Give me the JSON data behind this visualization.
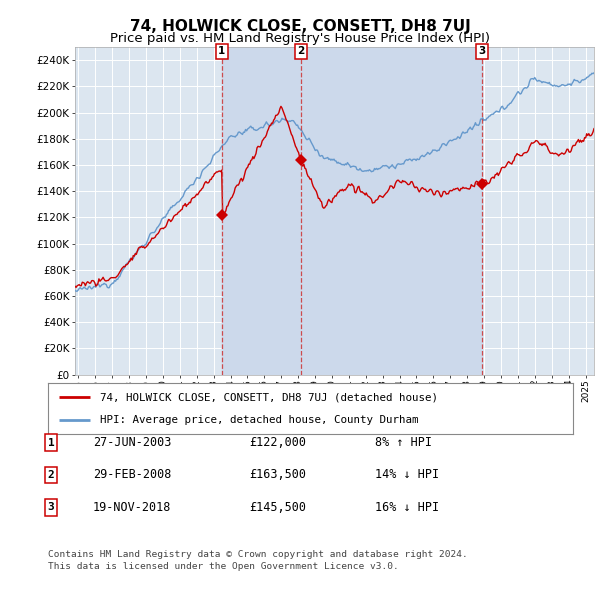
{
  "title": "74, HOLWICK CLOSE, CONSETT, DH8 7UJ",
  "subtitle": "Price paid vs. HM Land Registry's House Price Index (HPI)",
  "ylim": [
    0,
    250000
  ],
  "yticks": [
    0,
    20000,
    40000,
    60000,
    80000,
    100000,
    120000,
    140000,
    160000,
    180000,
    200000,
    220000,
    240000
  ],
  "ytick_labels": [
    "£0",
    "£20K",
    "£40K",
    "£60K",
    "£80K",
    "£100K",
    "£120K",
    "£140K",
    "£160K",
    "£180K",
    "£200K",
    "£220K",
    "£240K"
  ],
  "background_color": "#ffffff",
  "plot_bg_color": "#dce6f0",
  "grid_color": "#ffffff",
  "title_fontsize": 11,
  "subtitle_fontsize": 9.5,
  "transactions": [
    {
      "num": 1,
      "date": "27-JUN-2003",
      "price": 122000,
      "year": 2003.49,
      "pct": "8%",
      "dir": "↑"
    },
    {
      "num": 2,
      "date": "29-FEB-2008",
      "price": 163500,
      "year": 2008.16,
      "pct": "14%",
      "dir": "↓"
    },
    {
      "num": 3,
      "date": "19-NOV-2018",
      "price": 145500,
      "year": 2018.88,
      "pct": "16%",
      "dir": "↓"
    }
  ],
  "legend_label_red": "74, HOLWICK CLOSE, CONSETT, DH8 7UJ (detached house)",
  "legend_label_blue": "HPI: Average price, detached house, County Durham",
  "footnote_line1": "Contains HM Land Registry data © Crown copyright and database right 2024.",
  "footnote_line2": "This data is licensed under the Open Government Licence v3.0.",
  "red_color": "#cc0000",
  "blue_color": "#6699cc",
  "shade_color": "#ccd9eb",
  "vline_color": "#cc3333",
  "marker_color": "#cc0000",
  "xlim_start": 1994.8,
  "xlim_end": 2025.5
}
